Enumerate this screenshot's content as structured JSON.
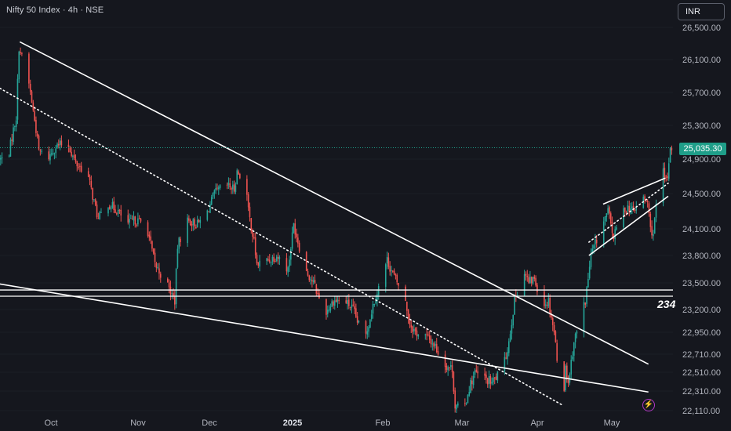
{
  "header": {
    "title": "Nifty 50 Index · 4h · NSE",
    "currency_button": "INR"
  },
  "last_price_label": "25,035.30",
  "level_label": "234",
  "bolt_icon": "lightning-icon",
  "colors": {
    "up": "#26a69a",
    "down": "#ef5350",
    "background": "#15171e",
    "text": "#b2b5be",
    "trendline": "#ffffff",
    "price_tag": "#1f9e89"
  },
  "chart_data": {
    "type": "candlestick",
    "title": "Nifty 50 Index · 4h · NSE",
    "xlabel": "",
    "ylabel": "",
    "ylim": [
      22050,
      26800
    ],
    "y_ticks": [
      "26,500.00",
      "26,100.00",
      "25,700.00",
      "25,300.00",
      "24,900.00",
      "24,500.00",
      "24,100.00",
      "23,800.00",
      "23,500.00",
      "23,200.00",
      "22,950.00",
      "22,710.00",
      "22,510.00",
      "22,310.00",
      "22,110.00"
    ],
    "x_ticks": [
      "Oct",
      "Nov",
      "Dec",
      "2025",
      "Feb",
      "Mar",
      "Apr",
      "May"
    ],
    "last_price": 25035.3,
    "anchors": [
      [
        "2024-09-23",
        24900
      ],
      [
        "2024-09-25",
        25250
      ],
      [
        "2024-09-26",
        25400
      ],
      [
        "2024-09-27",
        26250
      ],
      [
        "2024-09-30",
        25900
      ],
      [
        "2024-10-01",
        25700
      ],
      [
        "2024-10-03",
        25250
      ],
      [
        "2024-10-04",
        25000
      ],
      [
        "2024-10-07",
        24900
      ],
      [
        "2024-10-10",
        25050
      ],
      [
        "2024-10-14",
        25100
      ],
      [
        "2024-10-17",
        24850
      ],
      [
        "2024-10-21",
        24750
      ],
      [
        "2024-10-25",
        24200
      ],
      [
        "2024-10-28",
        24400
      ],
      [
        "2024-11-01",
        24300
      ],
      [
        "2024-11-04",
        24150
      ],
      [
        "2024-11-07",
        24200
      ],
      [
        "2024-11-11",
        24150
      ],
      [
        "2024-11-14",
        23700
      ],
      [
        "2024-11-18",
        23500
      ],
      [
        "2024-11-21",
        23300
      ],
      [
        "2024-11-22",
        23900
      ],
      [
        "2024-11-25",
        24200
      ],
      [
        "2024-11-29",
        24150
      ],
      [
        "2024-12-02",
        24250
      ],
      [
        "2024-12-05",
        24500
      ],
      [
        "2024-12-09",
        24600
      ],
      [
        "2024-12-12",
        24550
      ],
      [
        "2024-12-13",
        24750
      ],
      [
        "2024-12-16",
        24650
      ],
      [
        "2024-12-17",
        24300
      ],
      [
        "2024-12-19",
        23950
      ],
      [
        "2024-12-20",
        23700
      ],
      [
        "2024-12-24",
        23750
      ],
      [
        "2024-12-27",
        23800
      ],
      [
        "2024-12-31",
        23650
      ],
      [
        "2025-01-02",
        24150
      ],
      [
        "2025-01-06",
        23650
      ],
      [
        "2025-01-09",
        23500
      ],
      [
        "2025-01-13",
        23150
      ],
      [
        "2025-01-16",
        23300
      ],
      [
        "2025-01-20",
        23300
      ],
      [
        "2025-01-23",
        23200
      ],
      [
        "2025-01-27",
        22850
      ],
      [
        "2025-01-30",
        23250
      ],
      [
        "2025-02-01",
        23450
      ],
      [
        "2025-02-04",
        23750
      ],
      [
        "2025-02-06",
        23600
      ],
      [
        "2025-02-10",
        23350
      ],
      [
        "2025-02-12",
        23050
      ],
      [
        "2025-02-14",
        22950
      ],
      [
        "2025-02-18",
        22900
      ],
      [
        "2025-02-21",
        22800
      ],
      [
        "2025-02-24",
        22600
      ],
      [
        "2025-02-27",
        22550
      ],
      [
        "2025-02-28",
        22150
      ],
      [
        "2025-03-03",
        22100
      ],
      [
        "2025-03-05",
        22350
      ],
      [
        "2025-03-07",
        22500
      ],
      [
        "2025-03-10",
        22450
      ],
      [
        "2025-03-13",
        22400
      ],
      [
        "2025-03-17",
        22550
      ],
      [
        "2025-03-19",
        22850
      ],
      [
        "2025-03-21",
        23300
      ],
      [
        "2025-03-24",
        23650
      ],
      [
        "2025-03-26",
        23500
      ],
      [
        "2025-03-28",
        23550
      ],
      [
        "2025-03-31",
        23250
      ],
      [
        "2025-04-02",
        23300
      ],
      [
        "2025-04-04",
        22950
      ],
      [
        "2025-04-07",
        22150
      ],
      [
        "2025-04-08",
        22550
      ],
      [
        "2025-04-09",
        22400
      ],
      [
        "2025-04-11",
        22850
      ],
      [
        "2025-04-15",
        23300
      ],
      [
        "2025-04-17",
        23800
      ],
      [
        "2025-04-21",
        24150
      ],
      [
        "2025-04-23",
        24300
      ],
      [
        "2025-04-25",
        24000
      ],
      [
        "2025-04-28",
        24300
      ],
      [
        "2025-04-30",
        24350
      ],
      [
        "2025-05-02",
        24300
      ],
      [
        "2025-05-05",
        24450
      ],
      [
        "2025-05-07",
        24400
      ],
      [
        "2025-05-08",
        24100
      ],
      [
        "2025-05-09",
        24050
      ],
      [
        "2025-05-12",
        24900
      ],
      [
        "2025-05-13",
        24650
      ],
      [
        "2025-05-14",
        24700
      ],
      [
        "2025-05-15",
        25050
      ]
    ],
    "horizontal_levels": [
      23420,
      23350
    ],
    "trendlines": [
      {
        "style": "solid",
        "from": [
          "2024-09-27",
          26320
        ],
        "to": [
          "2025-05-07",
          22600
        ]
      },
      {
        "style": "solid",
        "from": [
          "2024-09-06",
          23560
        ],
        "to": [
          "2025-05-07",
          22300
        ]
      },
      {
        "style": "dotted",
        "from": [
          "2024-09-20",
          25750
        ],
        "to": [
          "2025-04-07",
          22160
        ]
      },
      {
        "style": "solid",
        "from": [
          "2025-04-21",
          24380
        ],
        "to": [
          "2025-05-13",
          24680
        ]
      },
      {
        "style": "solid",
        "from": [
          "2025-04-16",
          23800
        ],
        "to": [
          "2025-05-14",
          24470
        ]
      },
      {
        "style": "dotted",
        "from": [
          "2025-04-16",
          23950
        ],
        "to": [
          "2025-05-14",
          24620
        ]
      }
    ]
  }
}
